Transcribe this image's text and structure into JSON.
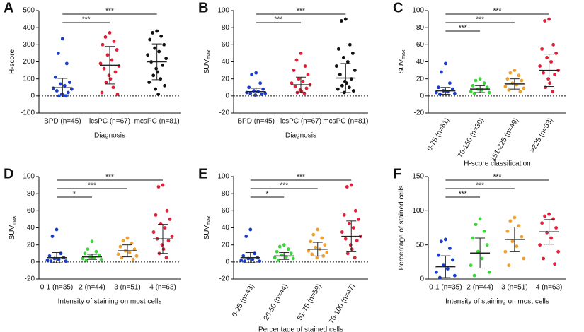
{
  "chart_data": [
    {
      "type": "dot",
      "panel": "A",
      "ylabel": "H-score",
      "xlabel": "Diagnosis",
      "ylim": [
        -100,
        500
      ],
      "yticks": [
        -100,
        0,
        100,
        200,
        300,
        400,
        500
      ],
      "rotate_xlabels": false,
      "series": [
        {
          "name": "BPD (n=45)",
          "color": "#1a3cc8",
          "mean": 48,
          "sd": 55,
          "values": [
            335,
            250,
            190,
            110,
            80,
            70,
            60,
            45,
            40,
            30,
            20,
            10,
            5,
            0,
            0
          ]
        },
        {
          "name": "lcsPC (n=67)",
          "color": "#e0203a",
          "mean": 180,
          "sd": 110,
          "values": [
            370,
            345,
            320,
            300,
            270,
            240,
            210,
            190,
            175,
            160,
            140,
            120,
            100,
            80,
            50,
            20,
            10
          ]
        },
        {
          "name": "mcsPC (n=81)",
          "color": "#111111",
          "mean": 200,
          "sd": 105,
          "values": [
            380,
            370,
            350,
            330,
            300,
            280,
            260,
            240,
            220,
            200,
            180,
            160,
            140,
            120,
            100,
            80,
            60,
            40,
            10
          ]
        }
      ],
      "comparisons": [
        {
          "groups": [
            0,
            1
          ],
          "label": "***"
        },
        {
          "groups": [
            0,
            2
          ],
          "label": "***"
        }
      ]
    },
    {
      "type": "dot",
      "panel": "B",
      "ylabel": "SUV",
      "ylabel_sub": "max",
      "xlabel": "Diagnosis",
      "ylim": [
        -20,
        100
      ],
      "yticks": [
        -20,
        0,
        20,
        40,
        60,
        80,
        100
      ],
      "rotate_xlabels": false,
      "series": [
        {
          "name": "BPD (n=45)",
          "color": "#1a3cc8",
          "mean": 5,
          "sd": 4,
          "values": [
            27,
            25,
            15,
            10,
            8,
            6,
            5,
            4,
            3,
            3,
            2,
            1
          ]
        },
        {
          "name": "lcsPC (n=67)",
          "color": "#e0203a",
          "mean": 13,
          "sd": 9,
          "values": [
            50,
            42,
            35,
            30,
            25,
            20,
            17,
            15,
            13,
            11,
            9,
            7,
            5,
            4,
            3
          ]
        },
        {
          "name": "mcsPC (n=81)",
          "color": "#111111",
          "mean": 21,
          "sd": 17,
          "values": [
            90,
            88,
            60,
            55,
            50,
            45,
            40,
            35,
            30,
            25,
            20,
            17,
            15,
            12,
            10,
            8,
            6,
            4
          ]
        }
      ],
      "comparisons": [
        {
          "groups": [
            0,
            1
          ],
          "label": "***"
        },
        {
          "groups": [
            0,
            2
          ],
          "label": "***"
        }
      ]
    },
    {
      "type": "dot",
      "panel": "C",
      "ylabel": "SUV",
      "ylabel_sub": "max",
      "xlabel": "H-score classification",
      "ylim": [
        -20,
        100
      ],
      "yticks": [
        -20,
        0,
        20,
        40,
        60,
        80,
        100
      ],
      "rotate_xlabels": true,
      "series": [
        {
          "name": "0-75 (n=61)",
          "color": "#1a3cc8",
          "mean": 6,
          "sd": 4,
          "values": [
            38,
            28,
            15,
            10,
            8,
            6,
            5,
            4,
            3,
            2
          ]
        },
        {
          "name": "76-150 (n=30)",
          "color": "#3cd63c",
          "mean": 8,
          "sd": 4,
          "values": [
            20,
            18,
            15,
            12,
            10,
            8,
            7,
            5,
            4,
            3
          ]
        },
        {
          "name": "151-225 (n=49)",
          "color": "#f0a030",
          "mean": 14,
          "sd": 6,
          "values": [
            30,
            27,
            24,
            20,
            18,
            15,
            13,
            11,
            9,
            7,
            5
          ]
        },
        {
          "name": ">225 (n=53)",
          "color": "#e0203a",
          "mean": 30,
          "sd": 19,
          "values": [
            90,
            88,
            60,
            55,
            50,
            45,
            40,
            35,
            30,
            27,
            25,
            20,
            15,
            10,
            5
          ]
        }
      ],
      "comparisons": [
        {
          "groups": [
            0,
            1
          ],
          "label": "***"
        },
        {
          "groups": [
            0,
            2
          ],
          "label": "***"
        },
        {
          "groups": [
            0,
            3
          ],
          "label": "***"
        }
      ]
    },
    {
      "type": "dot",
      "panel": "D",
      "ylabel": "SUV",
      "ylabel_sub": "max",
      "xlabel": "Intensity of staining on most cells",
      "ylim": [
        -20,
        100
      ],
      "yticks": [
        -20,
        0,
        20,
        40,
        60,
        80,
        100
      ],
      "rotate_xlabels": false,
      "series": [
        {
          "name": "0-1 (n=35)",
          "color": "#1a3cc8",
          "mean": 5,
          "sd": 6,
          "values": [
            38,
            30,
            10,
            7,
            5,
            4,
            3,
            2,
            1,
            1
          ]
        },
        {
          "name": "2 (n=44)",
          "color": "#3cd63c",
          "mean": 6,
          "sd": 3,
          "values": [
            24,
            15,
            12,
            10,
            8,
            6,
            5,
            4,
            3,
            2
          ]
        },
        {
          "name": "3 (n=51)",
          "color": "#f0a030",
          "mean": 13,
          "sd": 7,
          "values": [
            28,
            25,
            22,
            18,
            15,
            13,
            11,
            9,
            7,
            5,
            3
          ]
        },
        {
          "name": "4 (n=63)",
          "color": "#e0203a",
          "mean": 27,
          "sd": 17,
          "values": [
            90,
            88,
            60,
            55,
            50,
            45,
            40,
            35,
            30,
            27,
            25,
            20,
            15,
            10,
            5
          ]
        }
      ],
      "comparisons": [
        {
          "groups": [
            0,
            1
          ],
          "label": "*"
        },
        {
          "groups": [
            0,
            2
          ],
          "label": "***"
        },
        {
          "groups": [
            0,
            3
          ],
          "label": "***"
        }
      ]
    },
    {
      "type": "dot",
      "panel": "E",
      "ylabel": "SUV",
      "ylabel_sub": "max",
      "xlabel": "Percentage of stained cells",
      "ylim": [
        -20,
        100
      ],
      "yticks": [
        -20,
        0,
        20,
        40,
        60,
        80,
        100
      ],
      "rotate_xlabels": true,
      "series": [
        {
          "name": "0-25 (n=43)",
          "color": "#1a3cc8",
          "mean": 5,
          "sd": 6,
          "values": [
            38,
            30,
            10,
            7,
            5,
            4,
            3,
            2,
            1,
            1
          ]
        },
        {
          "name": "26-50 (n=44)",
          "color": "#3cd63c",
          "mean": 7,
          "sd": 4,
          "values": [
            20,
            18,
            15,
            12,
            10,
            8,
            6,
            5,
            4,
            2
          ]
        },
        {
          "name": "51-75 (n=59)",
          "color": "#f0a030",
          "mean": 15,
          "sd": 8,
          "values": [
            38,
            32,
            28,
            24,
            20,
            17,
            15,
            13,
            11,
            9,
            7,
            5
          ]
        },
        {
          "name": "76-100 (n=47)",
          "color": "#e0203a",
          "mean": 30,
          "sd": 18,
          "values": [
            90,
            88,
            60,
            55,
            50,
            45,
            40,
            35,
            30,
            27,
            25,
            20,
            15,
            10,
            5
          ]
        }
      ],
      "comparisons": [
        {
          "groups": [
            0,
            1
          ],
          "label": "*"
        },
        {
          "groups": [
            0,
            2
          ],
          "label": "***"
        },
        {
          "groups": [
            0,
            3
          ],
          "label": "***"
        }
      ]
    },
    {
      "type": "dot",
      "panel": "F",
      "ylabel": "Percentage of stained cells",
      "xlabel": "Intensity of staining on most cells",
      "ylim": [
        0,
        150
      ],
      "yticks": [
        0,
        50,
        100,
        150
      ],
      "rotate_xlabels": false,
      "series": [
        {
          "name": "0-1 (n=35)",
          "color": "#1a3cc8",
          "mean": 18,
          "sd": 16,
          "values": [
            58,
            55,
            45,
            35,
            28,
            20,
            15,
            10,
            5,
            2
          ]
        },
        {
          "name": "2 (n=44)",
          "color": "#3cd63c",
          "mean": 38,
          "sd": 22,
          "values": [
            88,
            80,
            70,
            60,
            50,
            40,
            30,
            20,
            10,
            5
          ]
        },
        {
          "name": "3 (n=51)",
          "color": "#f0a030",
          "mean": 58,
          "sd": 18,
          "values": [
            90,
            85,
            78,
            70,
            62,
            55,
            48,
            40,
            30,
            20
          ]
        },
        {
          "name": "4 (n=63)",
          "color": "#e0203a",
          "mean": 69,
          "sd": 18,
          "values": [
            95,
            92,
            88,
            82,
            75,
            68,
            60,
            50,
            40,
            30,
            22
          ]
        }
      ],
      "comparisons": [
        {
          "groups": [
            0,
            1
          ],
          "label": "***"
        },
        {
          "groups": [
            0,
            2
          ],
          "label": "***"
        },
        {
          "groups": [
            0,
            3
          ],
          "label": "***"
        }
      ]
    }
  ]
}
